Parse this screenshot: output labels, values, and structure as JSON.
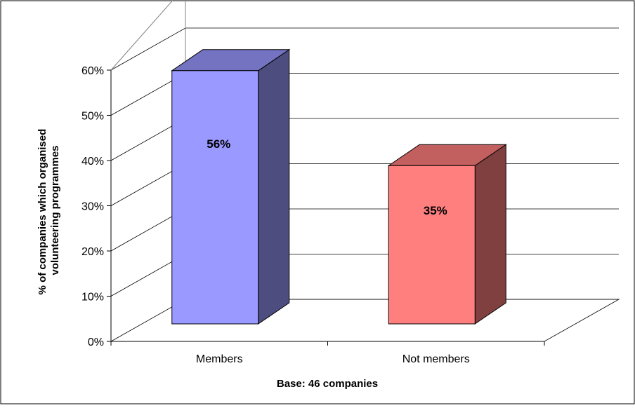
{
  "chart_data": {
    "type": "bar",
    "categories": [
      "Members",
      "Not members"
    ],
    "series": [
      {
        "values": [
          56,
          35
        ],
        "labels": [
          "56%",
          "35%"
        ],
        "colors": {
          "Members": {
            "front": "#9999ff",
            "top": "#7373c2",
            "side": "#4d4d80"
          },
          "Not members": {
            "front": "#ff7f7f",
            "top": "#c25f5f",
            "side": "#804040"
          }
        }
      }
    ],
    "yticks": [
      "0%",
      "10%",
      "20%",
      "30%",
      "40%",
      "50%",
      "60%"
    ],
    "ylim": [
      0,
      60
    ],
    "ylabel_lines": [
      "% of companies which organised",
      "volunteering programmes"
    ],
    "xlabel": "Base: 46 companies",
    "grid": true,
    "three_d": true
  }
}
